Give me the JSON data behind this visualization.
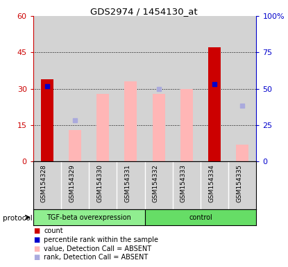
{
  "title": "GDS2974 / 1454130_at",
  "samples": [
    "GSM154328",
    "GSM154329",
    "GSM154330",
    "GSM154331",
    "GSM154332",
    "GSM154333",
    "GSM154334",
    "GSM154335"
  ],
  "count_values": [
    34,
    null,
    null,
    null,
    null,
    null,
    47,
    null
  ],
  "percentile_values": [
    31,
    null,
    null,
    null,
    null,
    null,
    32,
    null
  ],
  "value_absent": [
    null,
    13,
    28,
    33,
    28,
    30,
    null,
    7
  ],
  "rank_absent": [
    null,
    17,
    null,
    null,
    30,
    null,
    null,
    23
  ],
  "left_ylim": [
    0,
    60
  ],
  "right_ylim": [
    0,
    100
  ],
  "left_yticks": [
    0,
    15,
    30,
    45,
    60
  ],
  "right_yticks": [
    0,
    25,
    50,
    75,
    100
  ],
  "left_ylabel_color": "#CC0000",
  "right_ylabel_color": "#0000CC",
  "bar_width": 0.45,
  "count_color": "#CC0000",
  "percentile_color": "#0000CC",
  "value_absent_color": "#FFB6B6",
  "rank_absent_color": "#AAAADD",
  "bg_color": "#D3D3D3",
  "protocol_label": "protocol",
  "tgf_group_color": "#90EE90",
  "ctrl_group_color": "#66DD66",
  "n_tgf": 4,
  "n_ctrl": 4
}
